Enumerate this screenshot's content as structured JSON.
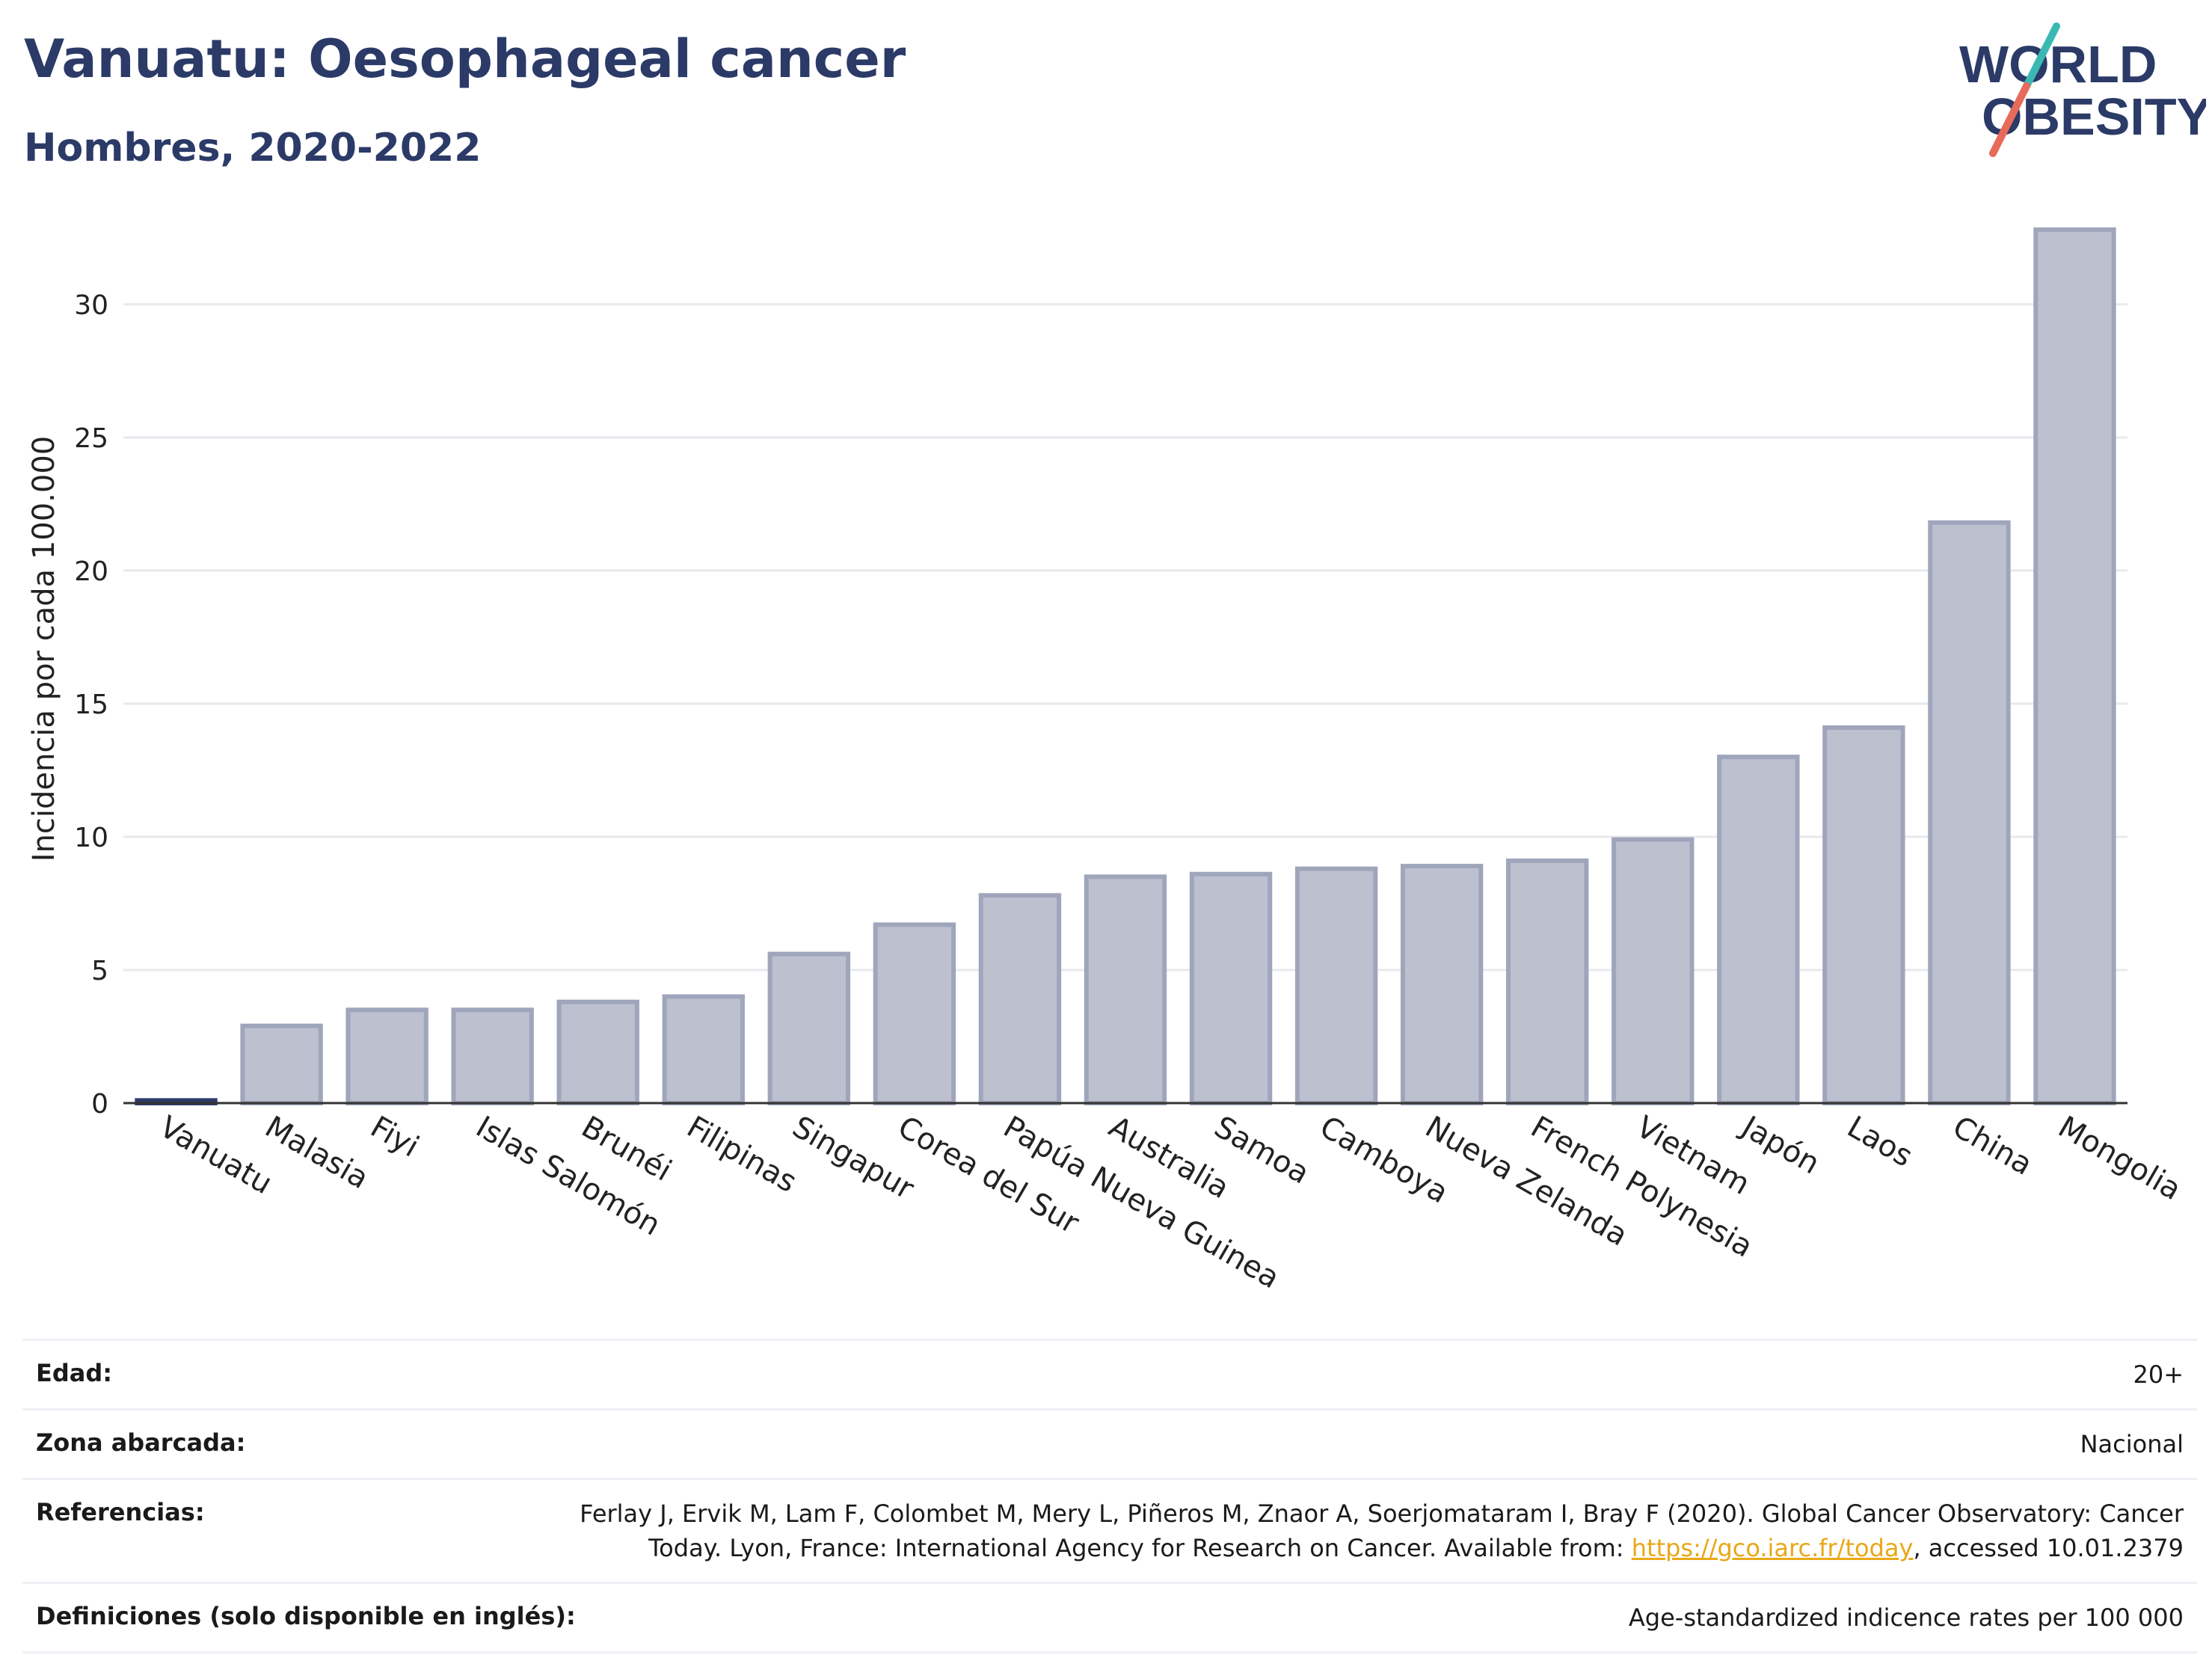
{
  "header": {
    "title": "Vanuatu: Oesophageal cancer",
    "subtitle": "Hombres, 2020-2022"
  },
  "logo": {
    "line1": "WORLD",
    "line2": "OBESITY"
  },
  "colors": {
    "highlight": "#2b3a67",
    "bar_fill": "#bcc0cf",
    "bar_stroke": "#9fa5bb",
    "title": "#2b3a67",
    "link": "#e8a817"
  },
  "chart_data": {
    "type": "bar",
    "title": "Vanuatu: Oesophageal cancer",
    "subtitle": "Hombres, 2020-2022",
    "xlabel": "",
    "ylabel": "Incidencia por cada 100.000",
    "ylim": [
      0,
      33
    ],
    "yticks": [
      0,
      5,
      10,
      15,
      20,
      25,
      30
    ],
    "grid": true,
    "highlight_category": "Vanuatu",
    "categories": [
      "Vanuatu",
      "Malasia",
      "Fiyi",
      "Islas Salomón",
      "Brunéi",
      "Filipinas",
      "Singapur",
      "Corea del Sur",
      "Papúa Nueva Guinea",
      "Australia",
      "Samoa",
      "Camboya",
      "Nueva Zelanda",
      "French Polynesia",
      "Vietnam",
      "Japón",
      "Laos",
      "China",
      "Mongolia"
    ],
    "values": [
      0.1,
      2.9,
      3.5,
      3.5,
      3.8,
      4.0,
      5.6,
      6.7,
      7.8,
      8.5,
      8.6,
      8.8,
      8.9,
      9.1,
      9.9,
      13.0,
      14.1,
      21.8,
      32.8
    ]
  },
  "info": {
    "rows": [
      {
        "label": "Edad:",
        "value": "20+"
      },
      {
        "label": "Zona abarcada:",
        "value": "Nacional"
      },
      {
        "label": "Referencias:",
        "value_line1": "Ferlay J, Ervik M, Lam F, Colombet M, Mery L, Piñeros M, Znaor A, Soerjomataram I, Bray F (2020). Global Cancer Observatory: Cancer",
        "value_pre": "Today. Lyon, France: International Agency for Research on Cancer. Available from: ",
        "link": "https://gco.iarc.fr/today",
        "value_post": ", accessed 10.01.2379"
      },
      {
        "label": "Definiciones (solo disponible en inglés):",
        "value": "Age-standardized indicence rates per 100 000"
      }
    ]
  }
}
